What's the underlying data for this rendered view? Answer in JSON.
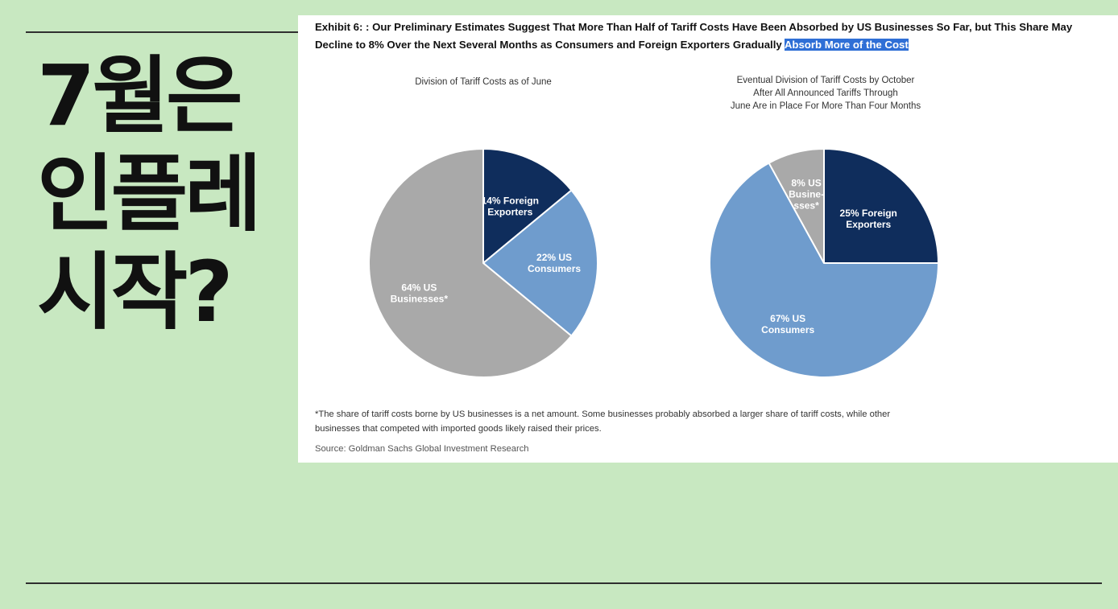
{
  "headline": {
    "line1": "7월은",
    "line2": "인플레",
    "line3": "시작?"
  },
  "exhibit": {
    "title_main": "Exhibit 6: : Our Preliminary Estimates Suggest That More Than Half of Tariff Costs Have Been Absorbed by US Businesses So Far, but This Share May Decline to 8% Over the Next Several Months as Consumers and Foreign Exporters Gradually ",
    "title_highlight": "Absorb More of the Cost"
  },
  "colors": {
    "foreign_exporters": "#0f2d5c",
    "us_consumers": "#6f9ccd",
    "us_businesses": "#a9a9a9",
    "highlight": "#2f6fd6",
    "background": "#c8e8c1"
  },
  "chart_data": [
    {
      "type": "pie",
      "title": "Division of Tariff Costs as of June",
      "slices": [
        {
          "name": "Foreign Exporters",
          "value": 14,
          "label_lines": [
            "14% Foreign",
            "Exporters"
          ],
          "color_key": "foreign_exporters"
        },
        {
          "name": "US Consumers",
          "value": 22,
          "label_lines": [
            "22% US",
            "Consumers"
          ],
          "color_key": "us_consumers"
        },
        {
          "name": "US Businesses*",
          "value": 64,
          "label_lines": [
            "64% US",
            "Businesses*"
          ],
          "color_key": "us_businesses"
        }
      ]
    },
    {
      "type": "pie",
      "title_lines": [
        "Eventual Division of Tariff Costs by October",
        "After All Announced Tariffs Through",
        "June Are in Place For More Than Four Months"
      ],
      "slices": [
        {
          "name": "Foreign Exporters",
          "value": 25,
          "label_lines": [
            "25% Foreign",
            "Exporters"
          ],
          "color_key": "foreign_exporters"
        },
        {
          "name": "US Consumers",
          "value": 67,
          "label_lines": [
            "67% US",
            "Consumers"
          ],
          "color_key": "us_consumers"
        },
        {
          "name": "US Businesses*",
          "value": 8,
          "label_lines": [
            "8% US",
            "Busine-",
            "sses*"
          ],
          "color_key": "us_businesses"
        }
      ]
    }
  ],
  "footnote": {
    "line1": "*The share of tariff costs borne by US businesses is a net amount. Some businesses probably absorbed a larger share of tariff costs, while other",
    "line2": "businesses that competed with imported goods likely raised their prices."
  },
  "source": "Source: Goldman Sachs Global Investment Research"
}
